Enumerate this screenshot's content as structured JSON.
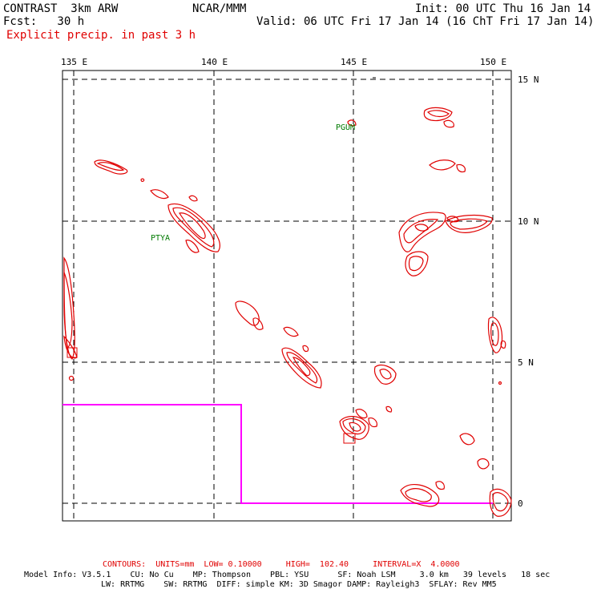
{
  "header": {
    "title": "CONTRAST  3km ARW",
    "center": "NCAR/MMM",
    "init": "Init: 00 UTC Thu 16 Jan 14",
    "fcst": "Fcst:   30 h",
    "valid": "Valid: 06 UTC Fri 17 Jan 14 (16 ChT Fri 17 Jan 14)",
    "field": "Explicit precip. in past 3 h"
  },
  "map": {
    "lon_labels": [
      "135 E",
      "140 E",
      "145 E",
      "150 E"
    ],
    "lat_labels": [
      "15 N",
      "10 N",
      "5 N",
      "0"
    ],
    "stations": [
      "PGUM",
      "PTYA"
    ],
    "colors": {
      "contour": "#e00000",
      "box": "#ff00ff",
      "station": "#007a00"
    }
  },
  "footer": {
    "contours": "CONTOURS:  UNITS=mm  LOW= 0.10000     HIGH=  102.40     INTERVAL=X  4.0000",
    "model_line1": "Model Info: V3.5.1    CU: No Cu    MP: Thompson    PBL: YSU      SF: Noah LSM     3.0 km   39 levels   18 sec",
    "model_line2": "LW: RRTMG    SW: RRTMG  DIFF: simple KM: 3D Smagor DAMP: Rayleigh3  SFLAY: Rev MM5"
  }
}
